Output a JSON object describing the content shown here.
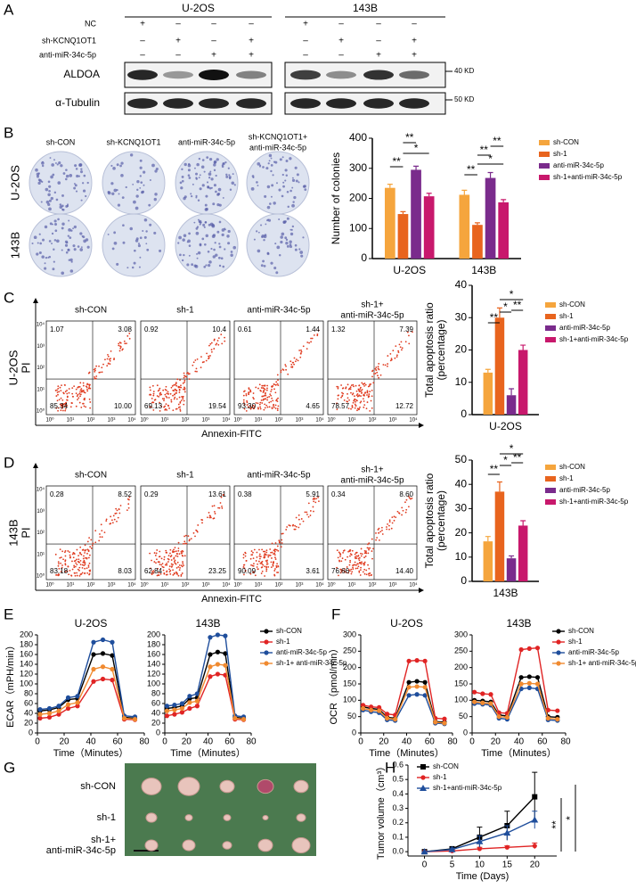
{
  "panel_labels": [
    "A",
    "B",
    "C",
    "D",
    "E",
    "F",
    "G",
    "H"
  ],
  "panel_a": {
    "groups": [
      "U-2OS",
      "143B"
    ],
    "rows": [
      {
        "label": "NC",
        "signs": [
          "+",
          "–",
          "–",
          "–",
          "+",
          "–",
          "–",
          "–"
        ]
      },
      {
        "label": "sh-KCNQ1OT1",
        "signs": [
          "–",
          "+",
          "–",
          "+",
          "–",
          "+",
          "–",
          "+"
        ]
      },
      {
        "label": "anti-miR-34c-5p",
        "signs": [
          "–",
          "–",
          "+",
          "+",
          "–",
          "–",
          "+",
          "+"
        ]
      }
    ],
    "blots": [
      {
        "label": "ALDOA",
        "marker": "40 KD"
      },
      {
        "label": "α-Tubulin",
        "marker": "50 KD"
      }
    ]
  },
  "panel_b": {
    "columns": [
      [
        "sh-CON"
      ],
      [
        "sh-KCNQ1OT1"
      ],
      [
        "anti-miR-34c-5p"
      ],
      [
        "sh-KCNQ1OT1+",
        "anti-miR-34c-5p"
      ]
    ],
    "rows": [
      "U-2OS",
      "143B"
    ]
  },
  "panel_c": {
    "y_label": [
      "U-2OS",
      "PI"
    ],
    "x_label": "Annexin-FITC",
    "ticks": [
      "10⁰",
      "10¹",
      "10²",
      "10³",
      "10⁴"
    ],
    "plots": [
      {
        "title": [
          "sh-CON"
        ],
        "quadrants": [
          "1.07",
          "3.08",
          "85.34",
          "10.00"
        ]
      },
      {
        "title": [
          "sh-1"
        ],
        "quadrants": [
          "0.92",
          "10.4",
          "69.13",
          "19.54"
        ]
      },
      {
        "title": [
          "anti-miR-34c-5p"
        ],
        "quadrants": [
          "0.61",
          "1.44",
          "93.30",
          "4.65"
        ]
      },
      {
        "title": [
          "sh-1+",
          "anti-miR-34c-5p"
        ],
        "quadrants": [
          "1.32",
          "7.39",
          "78.57",
          "12.72"
        ]
      }
    ]
  },
  "panel_d": {
    "y_label": [
      "143B",
      "PI"
    ],
    "x_label": "Annexin-FITC",
    "ticks": [
      "10⁰",
      "10¹",
      "10²",
      "10³",
      "10⁴"
    ],
    "plots": [
      {
        "title": [
          "sh-CON"
        ],
        "quadrants": [
          "0.28",
          "8.52",
          "83.18",
          "8.03"
        ]
      },
      {
        "title": [
          "sh-1"
        ],
        "quadrants": [
          "0.29",
          "13.61",
          "62.84",
          "23.25"
        ]
      },
      {
        "title": [
          "anti-miR-34c-5p"
        ],
        "quadrants": [
          "0.38",
          "5.91",
          "90.09",
          "3.61"
        ]
      },
      {
        "title": [
          "sh-1+",
          "anti-miR-34c-5p"
        ],
        "quadrants": [
          "0.34",
          "8.60",
          "76.66",
          "14.40"
        ]
      }
    ]
  },
  "panel_g": {
    "rows": [
      [
        "sh-CON"
      ],
      [
        "sh-1"
      ],
      [
        "sh-1+",
        "anti-miR-34c-5p"
      ]
    ]
  },
  "chart_data": [
    {
      "type": "bar",
      "ylabel": [
        "Number of colonies"
      ],
      "categories": [
        "U-2OS",
        "143B"
      ],
      "legend": "right",
      "series": [
        {
          "name": "sh-CON",
          "color": "#f5a53d",
          "values": [
            235,
            212
          ],
          "errors": [
            12,
            15
          ]
        },
        {
          "name": "sh-1",
          "color": "#e8641e",
          "values": [
            148,
            112
          ],
          "errors": [
            8,
            7
          ]
        },
        {
          "name": "anti-miR-34c-5p",
          "color": "#7a2b8c",
          "values": [
            295,
            268
          ],
          "errors": [
            12,
            18
          ]
        },
        {
          "name": "sh-1+anti-miR-34c-5p",
          "color": "#c8186c",
          "values": [
            207,
            187
          ],
          "errors": [
            10,
            9
          ]
        }
      ],
      "ylim": [
        0,
        400
      ],
      "yticks": [
        0,
        100,
        200,
        300,
        400
      ],
      "annotations": [
        "**",
        "*",
        "**",
        "**",
        "*",
        "**",
        "**"
      ]
    },
    {
      "type": "bar",
      "ylabel": [
        "Total apoptosis ratio",
        "(percentage)"
      ],
      "categories": [
        "U-2OS"
      ],
      "legend": "right",
      "series": [
        {
          "name": "sh-CON",
          "color": "#f5a53d",
          "values": [
            13
          ],
          "errors": [
            1
          ]
        },
        {
          "name": "sh-1",
          "color": "#e8641e",
          "values": [
            30
          ],
          "errors": [
            3
          ]
        },
        {
          "name": "anti-miR-34c-5p",
          "color": "#7a2b8c",
          "values": [
            6
          ],
          "errors": [
            2
          ]
        },
        {
          "name": "sh-1+anti-miR-34c-5p",
          "color": "#c8186c",
          "values": [
            20
          ],
          "errors": [
            1.5
          ]
        }
      ],
      "ylim": [
        0,
        40
      ],
      "yticks": [
        0,
        10,
        20,
        30,
        40
      ],
      "annotations": [
        "**",
        "*",
        "*",
        "**"
      ]
    },
    {
      "type": "bar",
      "ylabel": [
        "Total apoptosis ratio",
        "(percentage)"
      ],
      "categories": [
        "143B"
      ],
      "legend": "right",
      "series": [
        {
          "name": "sh-CON",
          "color": "#f5a53d",
          "values": [
            16.5
          ],
          "errors": [
            2
          ]
        },
        {
          "name": "sh-1",
          "color": "#e8641e",
          "values": [
            37
          ],
          "errors": [
            4
          ]
        },
        {
          "name": "anti-miR-34c-5p",
          "color": "#7a2b8c",
          "values": [
            9.5
          ],
          "errors": [
            1
          ]
        },
        {
          "name": "sh-1+anti-miR-34c-5p",
          "color": "#c8186c",
          "values": [
            23
          ],
          "errors": [
            2
          ]
        }
      ],
      "ylim": [
        0,
        50
      ],
      "yticks": [
        0,
        10,
        20,
        30,
        40,
        50
      ],
      "annotations": [
        "**",
        "*",
        "*",
        "**"
      ]
    },
    {
      "type": "line",
      "title": "U-2OS",
      "ylabel": "ECAR（mPH/min）",
      "xlabel": "Time（Minutes）",
      "x": [
        2,
        9,
        16,
        23,
        30,
        42,
        49,
        56,
        65,
        73
      ],
      "xlim": [
        0,
        80
      ],
      "xticks": [
        0,
        20,
        40,
        60,
        80
      ],
      "ylim": [
        0,
        200
      ],
      "yticks": [
        0,
        20,
        40,
        60,
        80,
        100,
        120,
        140,
        160,
        180,
        200
      ],
      "series": [
        {
          "color": "#000000",
          "values": [
            45,
            47,
            52,
            68,
            70,
            160,
            162,
            158,
            32,
            30
          ]
        },
        {
          "color": "#e02424",
          "values": [
            30,
            32,
            38,
            50,
            55,
            105,
            110,
            108,
            28,
            27
          ]
        },
        {
          "color": "#1f4e9c",
          "values": [
            48,
            50,
            55,
            72,
            75,
            185,
            190,
            185,
            35,
            33
          ]
        },
        {
          "color": "#f08a30",
          "values": [
            38,
            40,
            45,
            58,
            62,
            130,
            135,
            130,
            30,
            28
          ]
        }
      ]
    },
    {
      "type": "line",
      "title": "143B",
      "xlabel": "Time（Minutes）",
      "legend": "right",
      "x": [
        2,
        9,
        16,
        23,
        30,
        42,
        49,
        56,
        65,
        73
      ],
      "xlim": [
        0,
        80
      ],
      "xticks": [
        0,
        20,
        40,
        60,
        80
      ],
      "ylim": [
        0,
        200
      ],
      "yticks": [
        0,
        20,
        40,
        60,
        80,
        100,
        120,
        140,
        160,
        180,
        200
      ],
      "series": [
        {
          "name": "sh-CON",
          "color": "#000000",
          "values": [
            50,
            52,
            55,
            70,
            72,
            160,
            165,
            162,
            32,
            30
          ]
        },
        {
          "name": "sh-1",
          "color": "#e02424",
          "values": [
            35,
            38,
            42,
            50,
            55,
            115,
            120,
            118,
            28,
            27
          ]
        },
        {
          "name": "anti-miR-34c-5p",
          "color": "#1f4e9c",
          "values": [
            55,
            57,
            60,
            75,
            80,
            195,
            200,
            198,
            35,
            33
          ]
        },
        {
          "name": "sh-1+ anti-miR-34c-5p",
          "color": "#f08a30",
          "values": [
            45,
            47,
            50,
            62,
            65,
            135,
            140,
            138,
            30,
            28
          ]
        }
      ]
    },
    {
      "type": "line",
      "title": "U-2OS",
      "ylabel": "OCR（pmol/min）",
      "xlabel": "Time（Minutes）",
      "x": [
        2,
        9,
        16,
        23,
        30,
        42,
        49,
        56,
        65,
        73
      ],
      "xlim": [
        0,
        80
      ],
      "xticks": [
        0,
        20,
        40,
        60,
        80
      ],
      "ylim": [
        0,
        300
      ],
      "yticks": [
        0,
        50,
        100,
        150,
        200,
        250,
        300
      ],
      "series": [
        {
          "color": "#000000",
          "values": [
            80,
            75,
            72,
            48,
            45,
            155,
            158,
            155,
            35,
            33
          ]
        },
        {
          "color": "#e02424",
          "values": [
            85,
            80,
            78,
            58,
            55,
            220,
            222,
            220,
            45,
            43
          ]
        },
        {
          "color": "#1f4e9c",
          "values": [
            70,
            65,
            62,
            40,
            38,
            115,
            118,
            115,
            30,
            28
          ]
        },
        {
          "color": "#f08a30",
          "values": [
            75,
            70,
            68,
            45,
            42,
            140,
            142,
            140,
            33,
            30
          ]
        }
      ]
    },
    {
      "type": "line",
      "title": "143B",
      "xlabel": "Time（Minutes）",
      "legend": "right",
      "x": [
        2,
        9,
        16,
        23,
        30,
        42,
        49,
        56,
        65,
        73
      ],
      "xlim": [
        0,
        80
      ],
      "xticks": [
        0,
        20,
        40,
        60,
        80
      ],
      "ylim": [
        0,
        300
      ],
      "yticks": [
        0,
        50,
        100,
        150,
        200,
        250,
        300
      ],
      "series": [
        {
          "name": "sh-CON",
          "color": "#000000",
          "values": [
            100,
            98,
            95,
            55,
            52,
            170,
            172,
            170,
            50,
            48
          ]
        },
        {
          "name": "sh-1",
          "color": "#e02424",
          "values": [
            125,
            120,
            118,
            62,
            60,
            255,
            258,
            260,
            70,
            68
          ]
        },
        {
          "name": "anti-miR-34c-5p",
          "color": "#1f4e9c",
          "values": [
            90,
            88,
            85,
            45,
            42,
            135,
            138,
            135,
            40,
            38
          ]
        },
        {
          "name": "sh-1+ anti-miR-34c-5p",
          "color": "#f08a30",
          "values": [
            95,
            92,
            90,
            50,
            48,
            150,
            152,
            150,
            45,
            42
          ]
        }
      ]
    },
    {
      "type": "line",
      "ylabel": "Tumor volume（cm³）",
      "xlabel": "Time (Days)",
      "legend": "inside",
      "x": [
        0,
        5,
        10,
        15,
        20
      ],
      "xlim": [
        -3,
        24
      ],
      "xticks": [
        0,
        5,
        10,
        15,
        20
      ],
      "ylim": [
        -0.03,
        0.6
      ],
      "yticks": [
        {
          "value": 0,
          "label": "0.0"
        },
        {
          "value": 0.1,
          "label": "0.1"
        },
        {
          "value": 0.2,
          "label": "0.2"
        },
        {
          "value": 0.3,
          "label": "0.3"
        },
        {
          "value": 0.4,
          "label": "0.4"
        },
        {
          "value": 0.5,
          "label": "0.5"
        },
        {
          "value": 0.6,
          "label": "0.6"
        }
      ],
      "series": [
        {
          "name": "sh-CON",
          "color": "#000000",
          "marker": "square",
          "values": [
            0,
            0.02,
            0.1,
            0.18,
            0.38
          ],
          "errors": [
            0,
            0.01,
            0.07,
            0.1,
            0.17
          ]
        },
        {
          "name": "sh-1",
          "color": "#e02424",
          "marker": "circle",
          "values": [
            0,
            0.005,
            0.02,
            0.03,
            0.04
          ],
          "errors": [
            0,
            0.005,
            0.01,
            0.01,
            0.02
          ]
        },
        {
          "name": "sh-1+anti-miR-34c-5p",
          "color": "#1f4e9c",
          "marker": "triangle",
          "values": [
            0,
            0.015,
            0.07,
            0.13,
            0.22
          ],
          "errors": [
            0,
            0.01,
            0.04,
            0.05,
            0.06
          ]
        }
      ],
      "annotations": [
        "**",
        "*"
      ]
    }
  ]
}
